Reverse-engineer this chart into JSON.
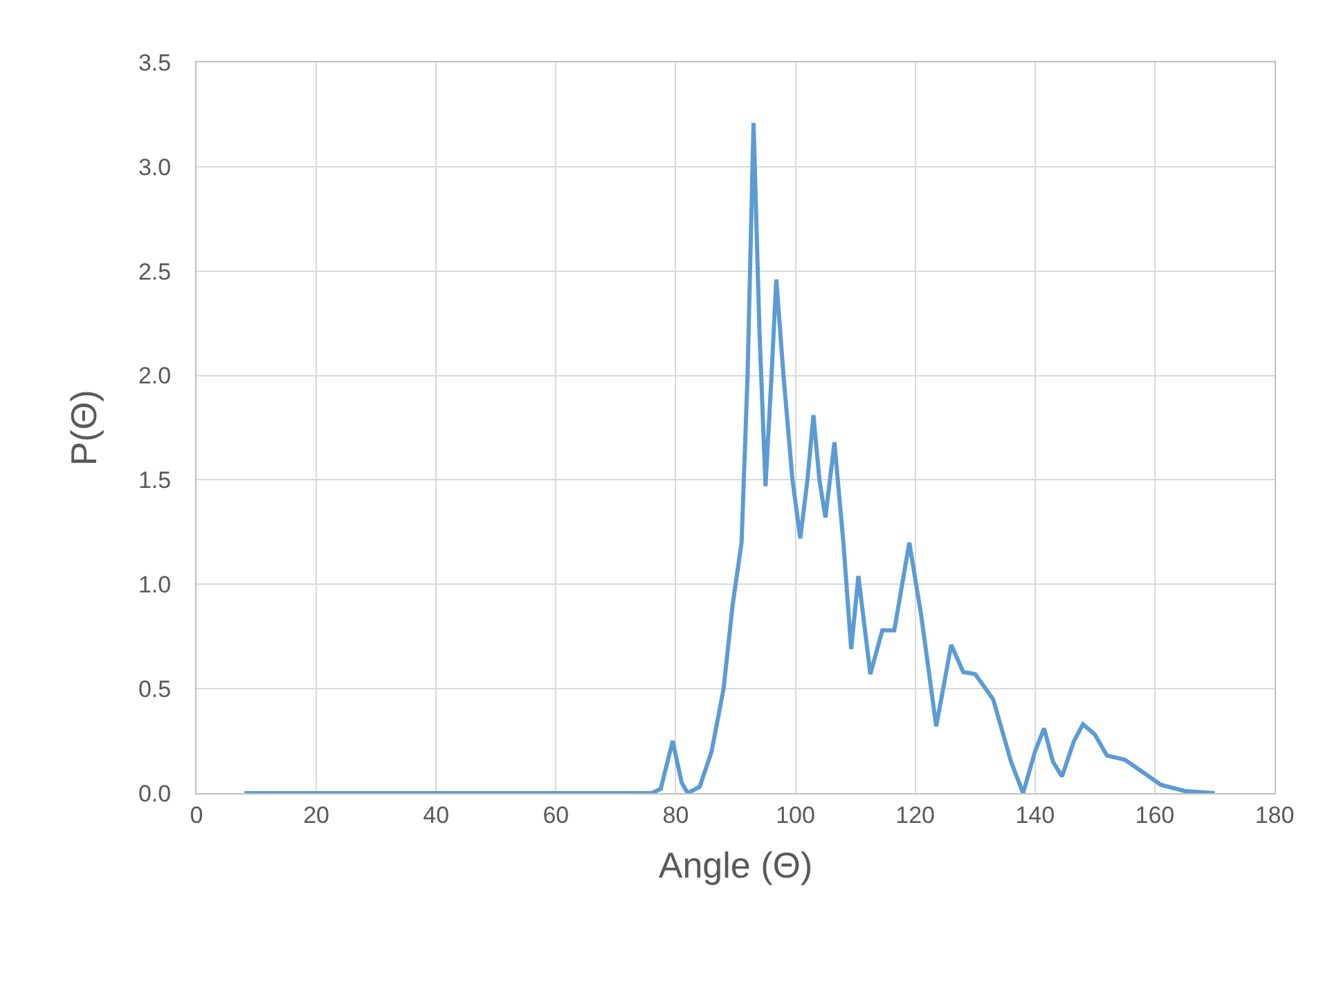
{
  "chart_data": {
    "type": "line",
    "xlabel": "Angle (Θ)",
    "ylabel": "P(Θ)",
    "x": [
      8,
      20,
      40,
      60,
      76,
      77.5,
      79.5,
      81,
      82,
      84,
      86,
      88,
      89.5,
      91,
      92,
      93,
      94,
      95,
      96,
      96.8,
      98,
      99.5,
      100.8,
      102,
      103,
      104,
      105,
      106.5,
      108,
      109.3,
      110.5,
      112.5,
      114.5,
      116.5,
      119,
      121,
      123.5,
      126,
      128,
      130,
      133,
      136,
      138,
      140,
      141.5,
      143,
      144.5,
      146.5,
      148,
      150,
      152,
      155,
      158,
      161,
      165,
      170
    ],
    "series": [
      {
        "color": "#5b9bd5",
        "values": [
          0,
          0,
          0,
          0,
          0,
          0.02,
          0.25,
          0.05,
          0,
          0.03,
          0.2,
          0.5,
          0.9,
          1.2,
          2.0,
          3.21,
          2.2,
          1.47,
          2.0,
          2.46,
          2.0,
          1.5,
          1.22,
          1.5,
          1.81,
          1.5,
          1.32,
          1.68,
          1.2,
          0.69,
          1.04,
          0.57,
          0.78,
          0.78,
          1.2,
          0.85,
          0.32,
          0.71,
          0.58,
          0.57,
          0.45,
          0.15,
          0,
          0.2,
          0.31,
          0.15,
          0.08,
          0.25,
          0.33,
          0.28,
          0.18,
          0.16,
          0.1,
          0.04,
          0.01,
          0
        ]
      }
    ],
    "xlim": [
      0,
      180
    ],
    "xticks": [
      0,
      20,
      40,
      60,
      80,
      100,
      120,
      140,
      160,
      180
    ],
    "ylim": [
      0,
      3.5
    ],
    "yticks": [
      {
        "value": 0,
        "label": "0.0"
      },
      {
        "value": 0.5,
        "label": "0.5"
      },
      {
        "value": 1,
        "label": "1.0"
      },
      {
        "value": 1.5,
        "label": "1.5"
      },
      {
        "value": 2,
        "label": "2.0"
      },
      {
        "value": 2.5,
        "label": "2.5"
      },
      {
        "value": 3,
        "label": "3.0"
      },
      {
        "value": 3.5,
        "label": "3.5"
      }
    ],
    "grid": true,
    "marker": "none",
    "line_style": "solid"
  }
}
